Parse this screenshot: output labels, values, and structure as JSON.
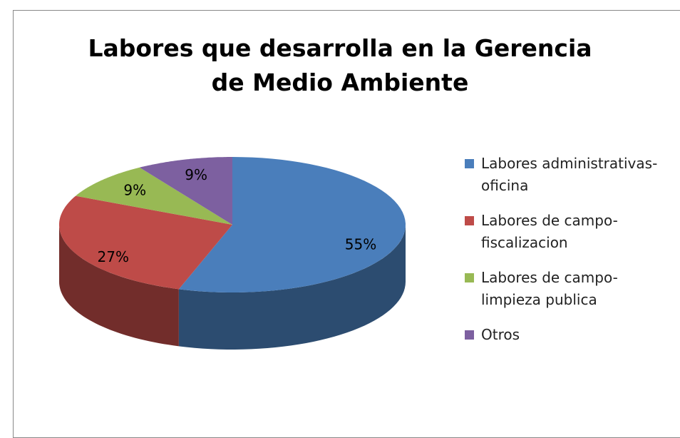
{
  "chart_data": {
    "type": "pie",
    "title": "Labores que desarrolla en la Gerencia de Medio Ambiente",
    "categories": [
      "Labores administrativas-oficina",
      "Labores de campo-fiscalizacion",
      "Labores de campo-limpieza publica",
      "Otros"
    ],
    "values": [
      55,
      27,
      9,
      9
    ],
    "value_labels": [
      "55%",
      "27%",
      "9%",
      "9%"
    ],
    "colors": [
      "#4a7ebb",
      "#be4b48",
      "#98b954",
      "#7d60a0"
    ],
    "legend": "right"
  }
}
